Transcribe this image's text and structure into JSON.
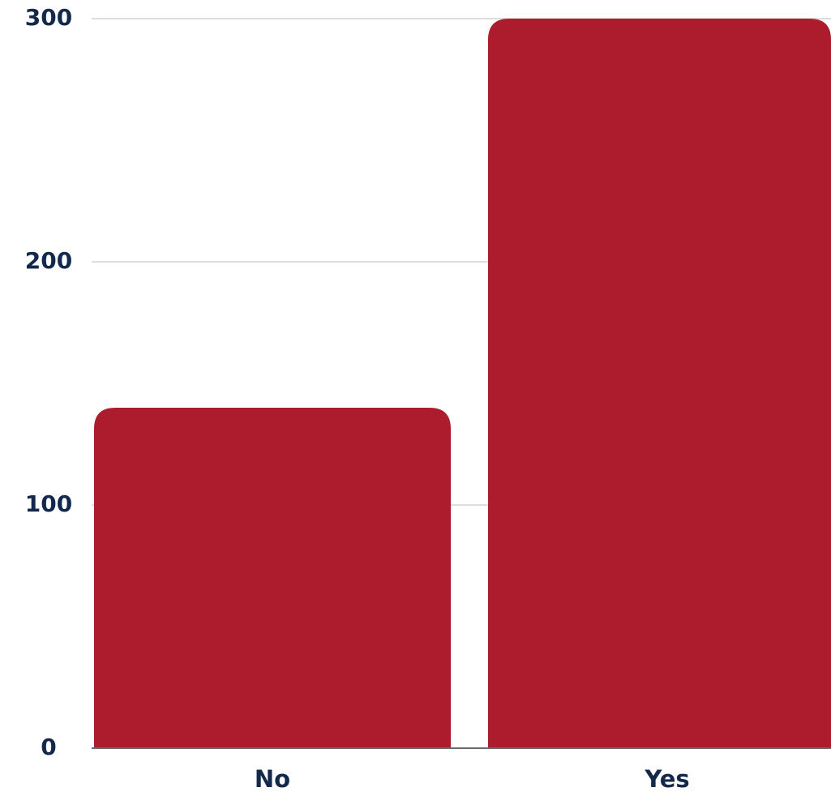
{
  "chart_data": {
    "type": "bar",
    "title": "",
    "xlabel": "",
    "ylabel": "",
    "categories": [
      "No",
      "Yes"
    ],
    "values": [
      140,
      300
    ],
    "ylim": [
      0,
      300
    ],
    "yticks": [
      "0",
      "100",
      "200",
      "300"
    ],
    "grid": true,
    "legend": "none",
    "colors": {
      "bar": "#ad1c2c",
      "label": "#13294b",
      "grid": "#d4d4d4",
      "axis": "#6b6b6b"
    }
  }
}
